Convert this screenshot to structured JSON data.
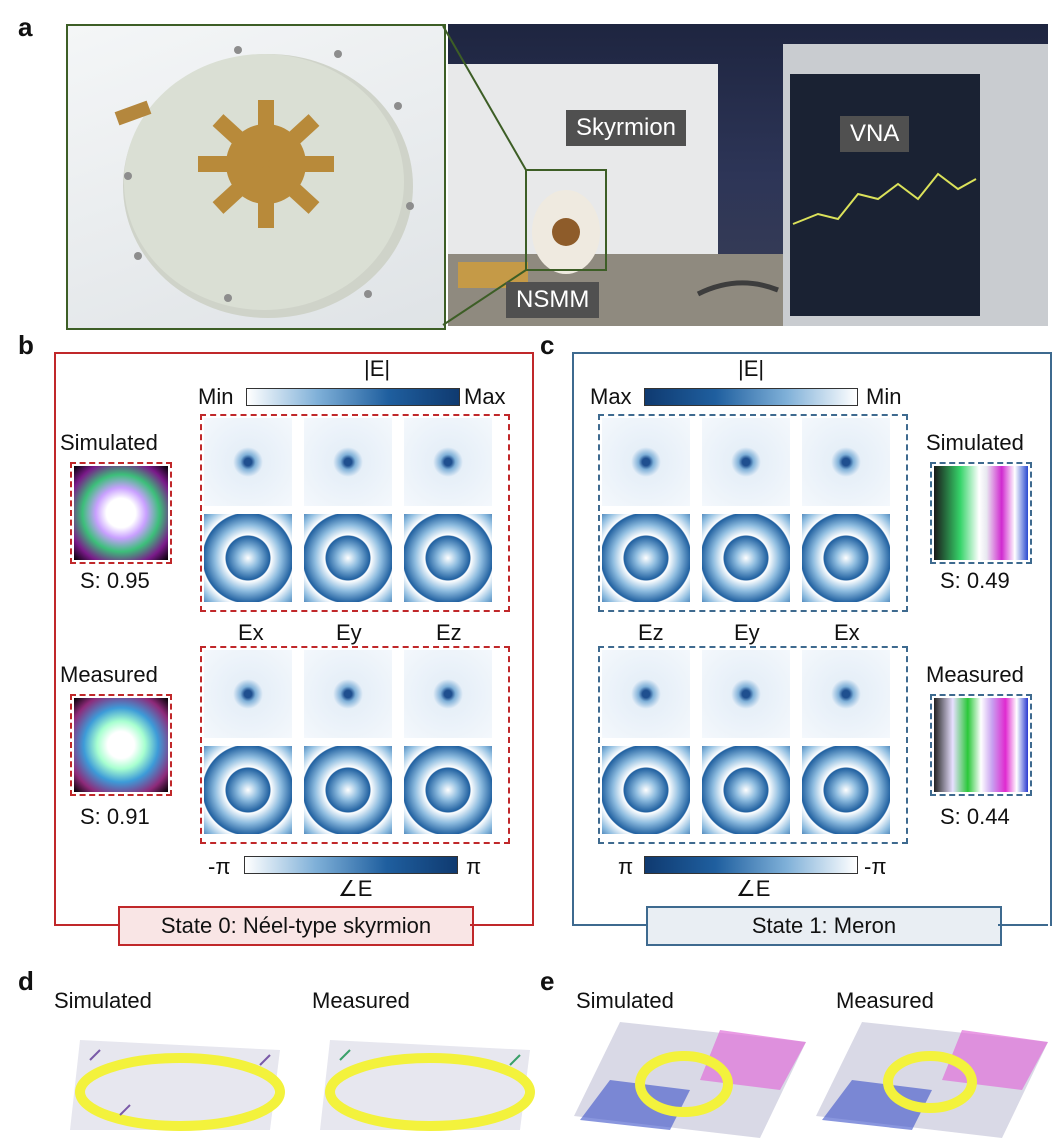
{
  "panels": {
    "a": "a",
    "b": "b",
    "c": "c",
    "d": "d",
    "e": "e"
  },
  "panel_a": {
    "tags": {
      "skyrmion": "Skyrmion",
      "vna": "VNA",
      "nsmm": "NSMM"
    }
  },
  "panel_b": {
    "mag_title": "|E|",
    "colorbar_left": "Min",
    "colorbar_right": "Max",
    "phase_left": "-π",
    "phase_right": "π",
    "phase_title": "∠E",
    "row_top": "Simulated",
    "row_bottom": "Measured",
    "score_top": "S: 0.95",
    "score_bottom": "S: 0.91",
    "components": [
      "Ex",
      "Ey",
      "Ez"
    ],
    "state": "State 0: Néel-type skyrmion"
  },
  "panel_c": {
    "mag_title": "|E|",
    "colorbar_left": "Max",
    "colorbar_right": "Min",
    "phase_left": "π",
    "phase_right": "-π",
    "phase_title": "∠E",
    "row_top": "Simulated",
    "row_bottom": "Measured",
    "score_top": "S: 0.49",
    "score_bottom": "S: 0.44",
    "components": [
      "Ez",
      "Ey",
      "Ex"
    ],
    "state": "State 1: Meron"
  },
  "panel_d": {
    "left": "Simulated",
    "right": "Measured"
  },
  "panel_e": {
    "left": "Simulated",
    "right": "Measured"
  },
  "colors": {
    "red": "#c0282a",
    "blue": "#3e6a8f",
    "field": "#1f5f9f"
  }
}
